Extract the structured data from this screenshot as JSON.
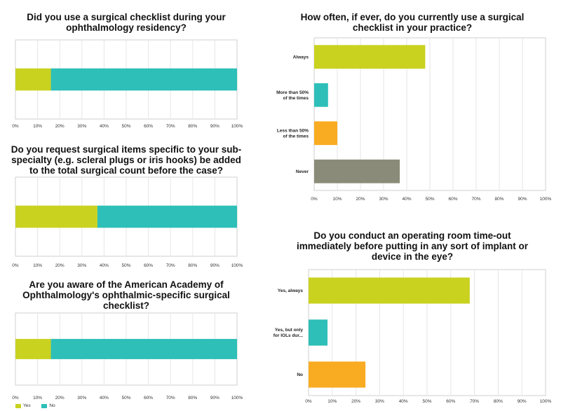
{
  "colors": {
    "green": "#c9d21f",
    "teal": "#2dbfb8",
    "orange": "#f9ab22",
    "gray": "#8b8b79"
  },
  "legend": [
    {
      "label": "Yes",
      "color": "#c9d21f"
    },
    {
      "label": "No",
      "color": "#2dbfb8"
    }
  ],
  "chart_data": [
    {
      "type": "bar",
      "orientation": "horizontal",
      "stacked": true,
      "title": [
        "Did you use a surgical checklist during your",
        "ophthalmology residency?"
      ],
      "categories": [
        ""
      ],
      "series": [
        {
          "name": "Yes",
          "values": [
            16
          ]
        },
        {
          "name": "No",
          "values": [
            84
          ]
        }
      ],
      "x_ticks": [
        "0%",
        "10%",
        "20%",
        "30%",
        "40%",
        "50%",
        "60%",
        "70%",
        "80%",
        "90%",
        "100%"
      ],
      "xlim": [
        0,
        100
      ]
    },
    {
      "type": "bar",
      "orientation": "horizontal",
      "stacked": true,
      "title": [
        "Do you request surgical items specific to your sub-",
        "specialty (e.g. scleral plugs or iris hooks) be added",
        "to the total surgical count before the case?"
      ],
      "categories": [
        ""
      ],
      "series": [
        {
          "name": "Yes",
          "values": [
            37
          ]
        },
        {
          "name": "No",
          "values": [
            63
          ]
        }
      ],
      "x_ticks": [
        "0%",
        "10%",
        "20%",
        "30%",
        "40%",
        "50%",
        "60%",
        "70%",
        "80%",
        "90%",
        "100%"
      ],
      "xlim": [
        0,
        100
      ]
    },
    {
      "type": "bar",
      "orientation": "horizontal",
      "stacked": true,
      "title": [
        "Are you aware of the American Academy of",
        "Ophthalmology's ophthalmic-specific surgical",
        "checklist?"
      ],
      "categories": [
        ""
      ],
      "series": [
        {
          "name": "Yes",
          "values": [
            16
          ]
        },
        {
          "name": "No",
          "values": [
            84
          ]
        }
      ],
      "x_ticks": [
        "0%",
        "10%",
        "20%",
        "30%",
        "40%",
        "50%",
        "60%",
        "70%",
        "80%",
        "90%",
        "100%"
      ],
      "xlim": [
        0,
        100
      ]
    },
    {
      "type": "bar",
      "orientation": "horizontal",
      "title": [
        "How often, if ever, do you currently use a surgical",
        "checklist in your practice?"
      ],
      "categories": [
        [
          "Always"
        ],
        [
          "More than 50%",
          "of the times"
        ],
        [
          "Less than 50%",
          "of the times"
        ],
        [
          "Never"
        ]
      ],
      "values": [
        48,
        6,
        10,
        37
      ],
      "bar_colors": [
        "#c9d21f",
        "#2dbfb8",
        "#f9ab22",
        "#8b8b79"
      ],
      "x_ticks": [
        "0%",
        "10%",
        "20%",
        "30%",
        "40%",
        "50%",
        "60%",
        "70%",
        "80%",
        "90%",
        "100%"
      ],
      "xlim": [
        0,
        100
      ]
    },
    {
      "type": "bar",
      "orientation": "horizontal",
      "title": [
        "Do you conduct an operating room time-out",
        "immediately before putting in any sort of implant or",
        "device in the eye?"
      ],
      "categories": [
        [
          "Yes, always"
        ],
        [
          "Yes, but only",
          "for IOLs dur..."
        ],
        [
          "No"
        ]
      ],
      "values": [
        68,
        8,
        24
      ],
      "bar_colors": [
        "#c9d21f",
        "#2dbfb8",
        "#f9ab22"
      ],
      "x_ticks": [
        "0%",
        "10%",
        "20%",
        "30%",
        "40%",
        "50%",
        "60%",
        "70%",
        "80%",
        "90%",
        "100%"
      ],
      "xlim": [
        0,
        100
      ]
    }
  ]
}
